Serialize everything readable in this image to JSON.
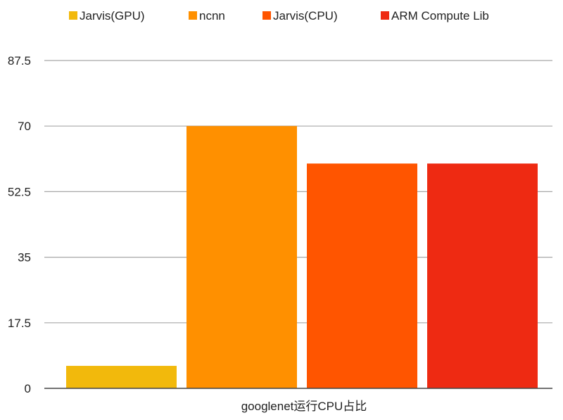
{
  "chart_data": {
    "type": "bar",
    "categories": [
      "googlenet运行CPU占比"
    ],
    "series": [
      {
        "name": "Jarvis(GPU)",
        "values": [
          6
        ],
        "color": "#f2b90c"
      },
      {
        "name": "ncnn",
        "values": [
          70
        ],
        "color": "#ff9000"
      },
      {
        "name": "Jarvis(CPU)",
        "values": [
          60
        ],
        "color": "#ff5500"
      },
      {
        "name": "ARM Compute Lib",
        "values": [
          60
        ],
        "color": "#ee2a12"
      }
    ],
    "yticks": [
      "0",
      "17.5",
      "35",
      "52.5",
      "70",
      "87.5"
    ],
    "ylim": [
      0,
      87.5
    ],
    "grid": true,
    "legend_position": "top",
    "title": "",
    "xlabel": "",
    "ylabel": ""
  },
  "colors": {
    "grid": "#a8a8a8",
    "axis": "#444444",
    "text": "#222222"
  }
}
